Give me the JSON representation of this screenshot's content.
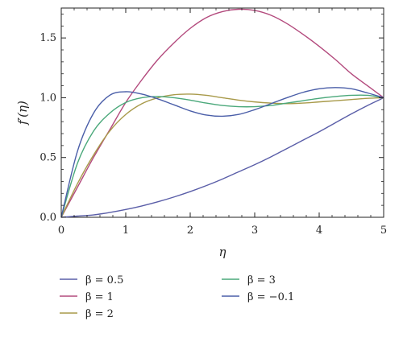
{
  "chart_data": {
    "type": "line",
    "xlabel": "η",
    "ylabel": "f′(η)",
    "xlim": [
      0,
      5
    ],
    "ylim": [
      0,
      1.75
    ],
    "xticks": [
      0,
      1,
      2,
      3,
      4,
      5
    ],
    "yticks": [
      0.0,
      0.5,
      1.0,
      1.5
    ],
    "ytick_labels": [
      "0.0",
      "0.5",
      "1.0",
      "1.5"
    ],
    "grid": false,
    "legend_position": "bottom",
    "series": [
      {
        "name": "β = 0.5",
        "color": "#5a5ea8",
        "x": [
          0,
          0.25,
          0.5,
          0.75,
          1,
          1.25,
          1.5,
          1.75,
          2,
          2.25,
          2.5,
          2.75,
          3,
          3.25,
          3.5,
          3.75,
          4,
          4.25,
          4.5,
          4.75,
          5
        ],
        "y": [
          0,
          0.01,
          0.02,
          0.04,
          0.065,
          0.095,
          0.13,
          0.17,
          0.215,
          0.265,
          0.32,
          0.38,
          0.44,
          0.505,
          0.575,
          0.645,
          0.715,
          0.79,
          0.865,
          0.935,
          1.0
        ]
      },
      {
        "name": "β = 1",
        "color": "#b34a7d",
        "x": [
          0,
          0.25,
          0.5,
          0.75,
          1,
          1.25,
          1.5,
          1.75,
          2,
          2.25,
          2.5,
          2.75,
          3,
          3.25,
          3.5,
          3.75,
          4,
          4.25,
          4.5,
          4.75,
          5
        ],
        "y": [
          0,
          0.25,
          0.5,
          0.73,
          0.96,
          1.15,
          1.32,
          1.46,
          1.58,
          1.67,
          1.72,
          1.74,
          1.73,
          1.69,
          1.62,
          1.53,
          1.43,
          1.32,
          1.2,
          1.1,
          1.0
        ]
      },
      {
        "name": "β = 2",
        "color": "#a89a4a",
        "x": [
          0,
          0.25,
          0.5,
          0.75,
          1,
          1.25,
          1.5,
          1.75,
          2,
          2.25,
          2.5,
          2.75,
          3,
          3.25,
          3.5,
          3.75,
          4,
          4.25,
          4.5,
          4.75,
          5
        ],
        "y": [
          0,
          0.28,
          0.52,
          0.72,
          0.86,
          0.95,
          1.0,
          1.025,
          1.03,
          1.02,
          1.0,
          0.98,
          0.965,
          0.955,
          0.95,
          0.955,
          0.965,
          0.975,
          0.985,
          0.995,
          1.0
        ]
      },
      {
        "name": "β = 3",
        "color": "#4aa87a",
        "x": [
          0,
          0.25,
          0.5,
          0.75,
          1,
          1.25,
          1.5,
          1.75,
          2,
          2.25,
          2.5,
          2.75,
          3,
          3.25,
          3.5,
          3.75,
          4,
          4.25,
          4.5,
          4.75,
          5
        ],
        "y": [
          0,
          0.45,
          0.72,
          0.87,
          0.96,
          1.0,
          1.01,
          1.0,
          0.98,
          0.955,
          0.935,
          0.925,
          0.925,
          0.935,
          0.955,
          0.975,
          0.995,
          1.01,
          1.02,
          1.02,
          1.0
        ]
      },
      {
        "name": "β = −0.1",
        "color": "#4a5ea8",
        "x": [
          0,
          0.25,
          0.5,
          0.75,
          1,
          1.25,
          1.5,
          1.75,
          2,
          2.25,
          2.5,
          2.75,
          3,
          3.25,
          3.5,
          3.75,
          4,
          4.25,
          4.5,
          4.75,
          5
        ],
        "y": [
          0,
          0.55,
          0.87,
          1.02,
          1.05,
          1.03,
          0.99,
          0.94,
          0.89,
          0.855,
          0.845,
          0.86,
          0.9,
          0.95,
          1.0,
          1.045,
          1.075,
          1.085,
          1.075,
          1.04,
          1.0
        ]
      }
    ]
  }
}
